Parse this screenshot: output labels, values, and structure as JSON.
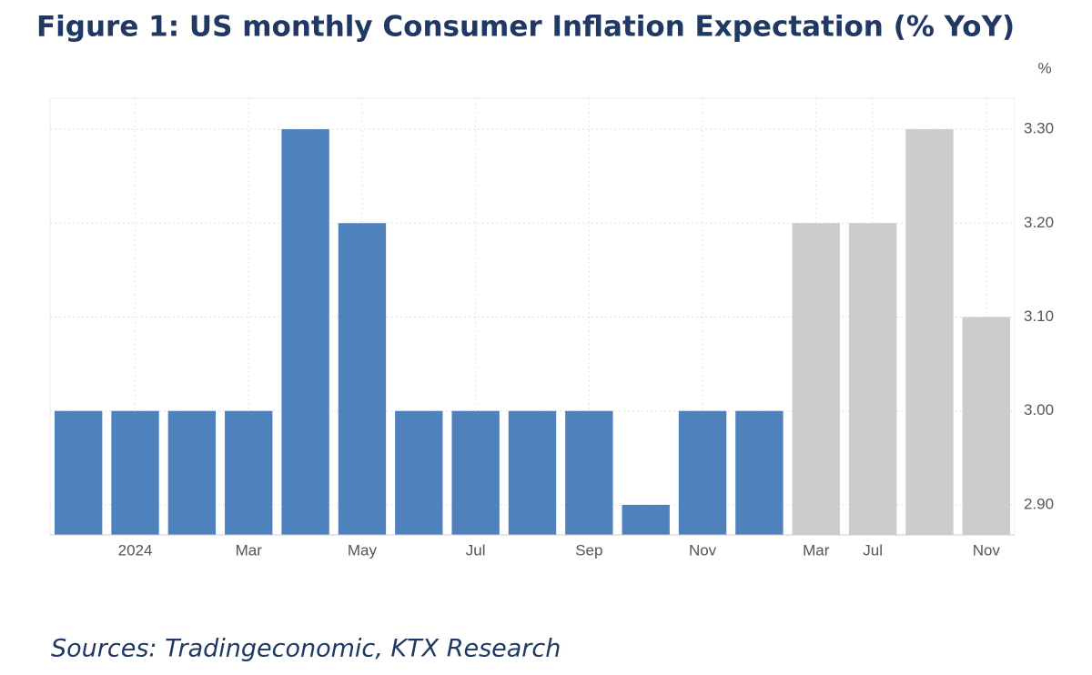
{
  "chart_data": {
    "type": "bar",
    "title": "Figure 1: US monthly Consumer Inflation Expectation (% YoY)",
    "unit": "%",
    "source": "Sources: Tradingeconomic, KTX Research",
    "categories": [
      null,
      "2024",
      null,
      "Mar",
      null,
      "May",
      null,
      "Jul",
      null,
      "Sep",
      null,
      "Nov",
      null,
      "Mar",
      "Jul",
      null,
      "Nov"
    ],
    "values": [
      3.0,
      3.0,
      3.0,
      3.0,
      3.3,
      3.2,
      3.0,
      3.0,
      3.0,
      3.0,
      2.9,
      3.0,
      3.0,
      3.2,
      3.2,
      3.3,
      3.1
    ],
    "colors": [
      "#4f81bd",
      "#4f81bd",
      "#4f81bd",
      "#4f81bd",
      "#4f81bd",
      "#4f81bd",
      "#4f81bd",
      "#4f81bd",
      "#4f81bd",
      "#4f81bd",
      "#4f81bd",
      "#4f81bd",
      "#4f81bd",
      "#cccccc",
      "#cccccc",
      "#cccccc",
      "#cccccc"
    ],
    "ylim": [
      2.868,
      3.333
    ],
    "yticks": [
      {
        "value": 2.9,
        "label": "2.90"
      },
      {
        "value": 3.0,
        "label": "3.00"
      },
      {
        "value": 3.1,
        "label": "3.10"
      },
      {
        "value": 3.2,
        "label": "3.20"
      },
      {
        "value": 3.3,
        "label": "3.30"
      }
    ],
    "grid": true
  }
}
